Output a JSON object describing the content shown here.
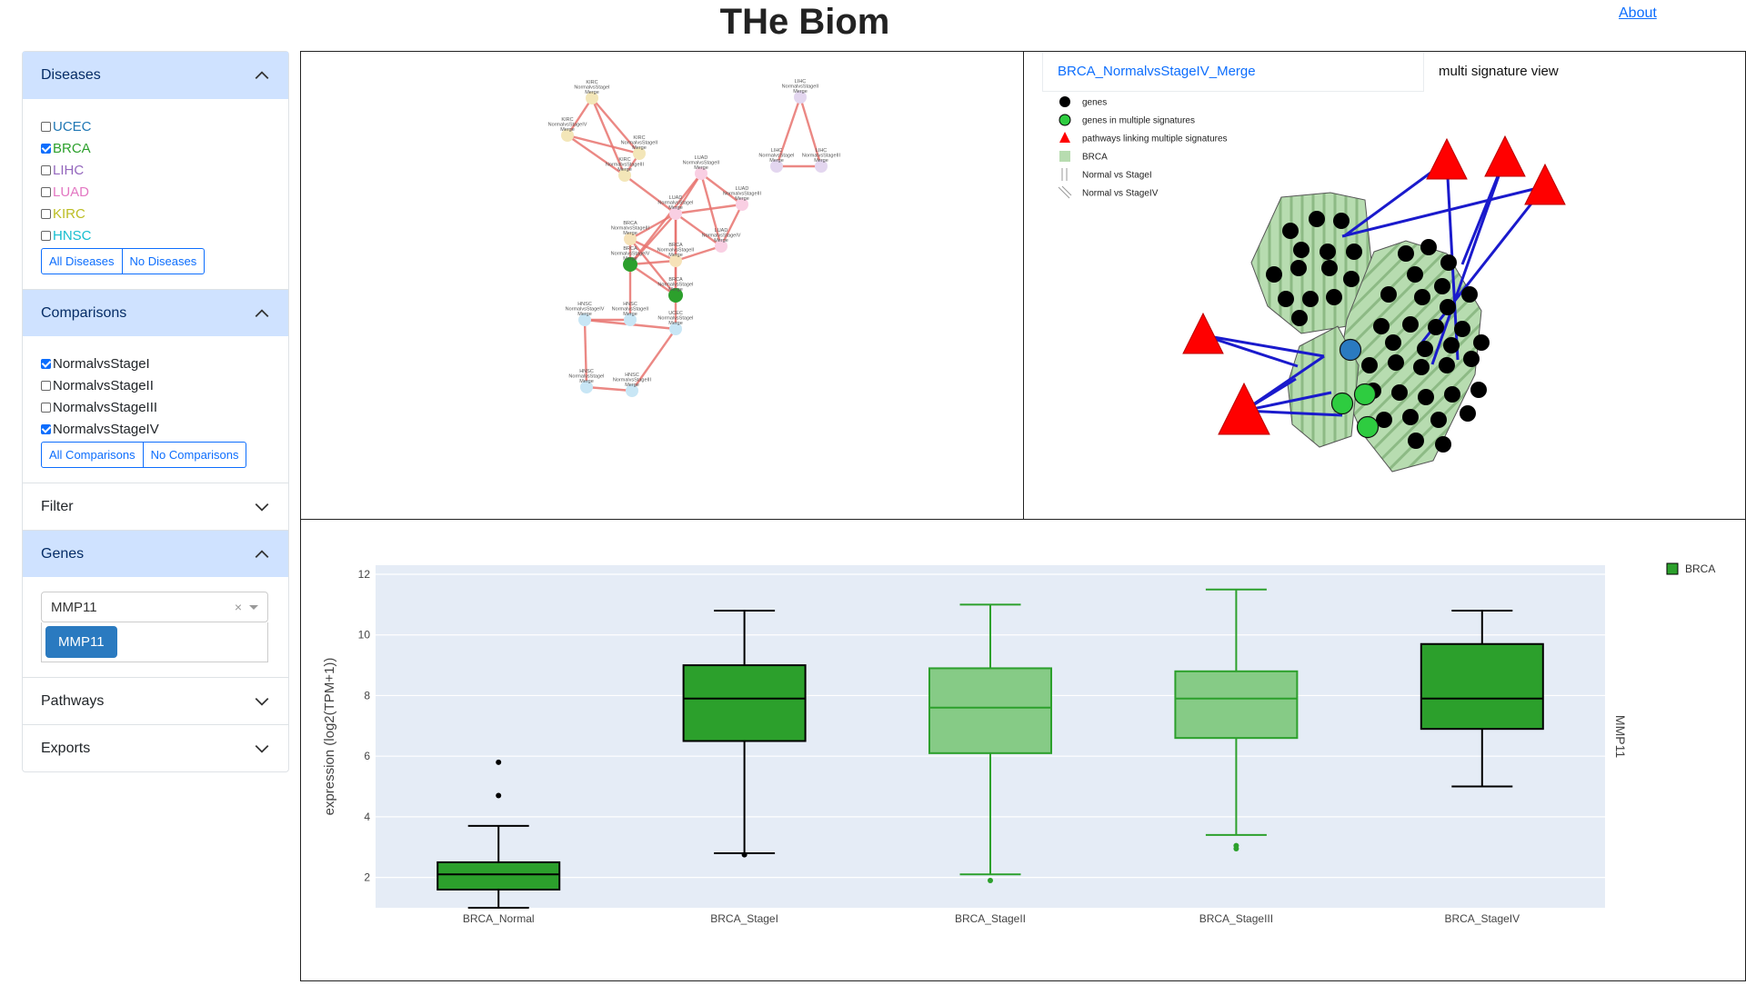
{
  "header": {
    "title": "THe Biom",
    "about": "About"
  },
  "sidebar": {
    "diseases": {
      "title": "Diseases",
      "items": [
        {
          "label": "UCEC",
          "checked": false,
          "color": "#1f77b4"
        },
        {
          "label": "BRCA",
          "checked": true,
          "color": "#2ca02c"
        },
        {
          "label": "LIHC",
          "checked": false,
          "color": "#9467bd"
        },
        {
          "label": "LUAD",
          "checked": false,
          "color": "#e377c2"
        },
        {
          "label": "KIRC",
          "checked": false,
          "color": "#bcbd22"
        },
        {
          "label": "HNSC",
          "checked": false,
          "color": "#17becf"
        }
      ],
      "all_label": "All Diseases",
      "none_label": "No Diseases"
    },
    "comparisons": {
      "title": "Comparisons",
      "items": [
        {
          "label": "NormalvsStageI",
          "checked": true
        },
        {
          "label": "NormalvsStageII",
          "checked": false
        },
        {
          "label": "NormalvsStageIII",
          "checked": false
        },
        {
          "label": "NormalvsStageIV",
          "checked": true
        }
      ],
      "all_label": "All Comparisons",
      "none_label": "No Comparisons"
    },
    "filter": {
      "title": "Filter"
    },
    "genes": {
      "title": "Genes",
      "select_value": "MMP11",
      "clear_glyph": "×",
      "option": "MMP11"
    },
    "pathways": {
      "title": "Pathways"
    },
    "exports": {
      "title": "Exports"
    }
  },
  "network": {
    "nodes": [
      {
        "id": "kirc1",
        "lines": [
          "KIRC",
          "NormalvsStageI",
          "Merge"
        ]
      },
      {
        "id": "kirc2",
        "lines": [
          "KIRC",
          "NormalvsStageII",
          "Merge"
        ]
      },
      {
        "id": "kirc3",
        "lines": [
          "KIRC",
          "NormalvsStageIII",
          "Merge"
        ]
      },
      {
        "id": "kirc4",
        "lines": [
          "KIRC",
          "NormalvsStageIV",
          "Merge"
        ]
      },
      {
        "id": "lihc1",
        "lines": [
          "LIHC",
          "NormalvsStageII",
          "Merge"
        ]
      },
      {
        "id": "lihc2",
        "lines": [
          "LIHC",
          "NormalvsStageIII",
          "Merge"
        ]
      },
      {
        "id": "lihc3",
        "lines": [
          "LIHC",
          "NormalvsStageI",
          "Merge"
        ]
      },
      {
        "id": "luad1",
        "lines": [
          "LUAD",
          "NormalvsStageII",
          "Merge"
        ]
      },
      {
        "id": "luad2",
        "lines": [
          "LUAD",
          "NormalvsStageIII",
          "Merge"
        ]
      },
      {
        "id": "luad3",
        "lines": [
          "LUAD",
          "NormalvsStageIV",
          "Merge"
        ]
      },
      {
        "id": "luad4",
        "lines": [
          "LUAD",
          "NormalvsStageI",
          "Merge"
        ]
      },
      {
        "id": "brca1",
        "lines": [
          "BRCA",
          "NormalvsStageIII",
          "Merge"
        ]
      },
      {
        "id": "brca2",
        "lines": [
          "BRCA",
          "NormalvsStageII",
          "Merge"
        ]
      },
      {
        "id": "brca3",
        "lines": [
          "BRCA",
          "NormalvsStageIV",
          "Merge"
        ]
      },
      {
        "id": "brca4",
        "lines": [
          "BRCA",
          "NormalvsStageI",
          "Merge"
        ]
      },
      {
        "id": "ucec1",
        "lines": [
          "UCEC",
          "NormalvsStageI",
          "Merge"
        ]
      },
      {
        "id": "hnsc1",
        "lines": [
          "HNSC",
          "NormalvsStageII",
          "Merge"
        ]
      },
      {
        "id": "hnsc2",
        "lines": [
          "HNSC",
          "NormalvsStageIV",
          "Merge"
        ]
      },
      {
        "id": "hnsc3",
        "lines": [
          "HNSC",
          "NormalvsStageI",
          "Merge"
        ]
      },
      {
        "id": "hnsc4",
        "lines": [
          "HNSC",
          "NormalvsStageIII",
          "Merge"
        ]
      }
    ],
    "colors": {
      "edge": "#e8736f",
      "kirc": "#f3e6b8",
      "lihc": "#e3d6ef",
      "luad": "#f9cfe3",
      "brca": "#2ca02c",
      "brca_light": "#f6e2b8",
      "hnsc": "#c8e6f5"
    }
  },
  "signature_view": {
    "tabs": [
      "BRCA_NormalvsStageIV_Merge",
      "multi signature view"
    ],
    "legend": [
      {
        "label": "genes",
        "symbol": "black-circle"
      },
      {
        "label": "genes in multiple signatures",
        "symbol": "green-circle"
      },
      {
        "label": "pathways linking multiple signatures",
        "symbol": "red-triangle"
      },
      {
        "label": "BRCA",
        "symbol": "green-square"
      },
      {
        "label": "Normal vs StageI",
        "symbol": "vertical-hatch"
      },
      {
        "label": "Normal vs StageIV",
        "symbol": "diagonal-hatch"
      }
    ],
    "colors": {
      "gene": "#000000",
      "multi_gene": "#2ecc40",
      "pathway": "#ff0000",
      "link": "#1a1acc",
      "highlight": "#2a7ac0",
      "cluster": "#b7dcb0"
    }
  },
  "chart_data": {
    "type": "box",
    "title": "",
    "xlabel": "",
    "ylabel": "expression (log2(TPM+1))",
    "right_label": "MMP11",
    "ylim": [
      1,
      12
    ],
    "yticks": [
      2,
      4,
      6,
      8,
      10,
      12
    ],
    "legend": [
      "BRCA"
    ],
    "categories": [
      "BRCA_Normal",
      "BRCA_StageI",
      "BRCA_StageII",
      "BRCA_StageIII",
      "BRCA_StageIV"
    ],
    "series": [
      {
        "name": "BRCA",
        "boxes": [
          {
            "min": 1.0,
            "q1": 1.6,
            "median": 2.1,
            "q3": 2.5,
            "max": 3.7,
            "outliers": [
              4.7,
              5.8
            ],
            "style": "dark"
          },
          {
            "min": 2.8,
            "q1": 6.5,
            "median": 7.9,
            "q3": 9.0,
            "max": 10.8,
            "outliers": [
              2.75
            ],
            "style": "dark"
          },
          {
            "min": 2.1,
            "q1": 6.1,
            "median": 7.6,
            "q3": 8.9,
            "max": 11.0,
            "outliers": [
              1.9
            ],
            "style": "light"
          },
          {
            "min": 3.4,
            "q1": 6.6,
            "median": 7.9,
            "q3": 8.8,
            "max": 11.5,
            "outliers": [
              2.95,
              3.05
            ],
            "style": "light"
          },
          {
            "min": 5.0,
            "q1": 6.9,
            "median": 7.9,
            "q3": 9.7,
            "max": 10.8,
            "outliers": [],
            "style": "dark"
          }
        ]
      }
    ],
    "colors": {
      "dark_fill": "#2ca02c",
      "light_fill": "#86cb86",
      "light_line": "#2ca02c",
      "plot_bg": "#e5ecf6"
    }
  }
}
